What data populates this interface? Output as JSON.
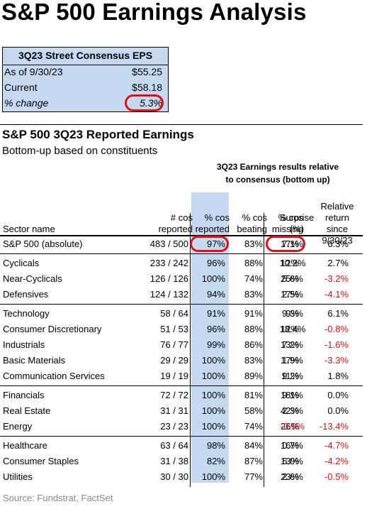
{
  "title": "S&P 500 Earnings Analysis",
  "eps_box": {
    "header": "3Q23 Street Consensus EPS",
    "rows": [
      {
        "label": "As of 9/30/23",
        "value": "$55.25"
      },
      {
        "label": "Current",
        "value": "$58.18"
      },
      {
        "label": "% change",
        "value": "5.3%"
      }
    ],
    "highlight_color": "#e01010",
    "fill_color": "#c5daf0"
  },
  "table_title": "S&P 500 3Q23 Reported Earnings",
  "table_subtitle": "Bottom-up based on constituents",
  "group_header": [
    "3Q23 Earnings results relative",
    "to consensus (bottom up)"
  ],
  "columns": {
    "sector": "Sector name",
    "reported": [
      "# cos",
      "reported"
    ],
    "pct_reported": [
      "% cos",
      "reported"
    ],
    "beating": [
      "% cos",
      "beating"
    ],
    "missing": [
      "% cos",
      "missing"
    ],
    "surprise": [
      "Surprise",
      "(%)"
    ],
    "relative": [
      "Relative",
      "return since",
      "9/30/23"
    ]
  },
  "summary_row": {
    "name": "S&P 500 (absolute)",
    "reported": "483 / 500",
    "pct_reported": "97%",
    "beating": "83%",
    "missing": "17%",
    "surprise": "7.1%",
    "relative": "6.3%"
  },
  "groups": [
    [
      {
        "name": "Cyclicals",
        "reported": "233 / 242",
        "pct_reported": "96%",
        "beating": "88%",
        "missing": "12%",
        "surprise": "10.2%",
        "relative": "2.7%"
      },
      {
        "name": "Near-Cyclicals",
        "reported": "126 / 126",
        "pct_reported": "100%",
        "beating": "74%",
        "missing": "25%",
        "surprise": "5.6%",
        "relative": "-3.2%"
      },
      {
        "name": "Defensives",
        "reported": "124 / 132",
        "pct_reported": "94%",
        "beating": "83%",
        "missing": "17%",
        "surprise": "2.5%",
        "relative": "-4.1%"
      }
    ],
    [
      {
        "name": "Technology",
        "reported": "58 / 64",
        "pct_reported": "91%",
        "beating": "91%",
        "missing": "9%",
        "surprise": "9.3%",
        "relative": "6.1%"
      },
      {
        "name": "Consumer Discretionary",
        "reported": "51 / 53",
        "pct_reported": "96%",
        "beating": "88%",
        "missing": "12%",
        "surprise": "18.4%",
        "relative": "-0.8%"
      },
      {
        "name": "Industrials",
        "reported": "76 / 77",
        "pct_reported": "99%",
        "beating": "86%",
        "missing": "13%",
        "surprise": "7.2%",
        "relative": "-1.6%"
      },
      {
        "name": "Basic Materials",
        "reported": "29 / 29",
        "pct_reported": "100%",
        "beating": "83%",
        "missing": "17%",
        "surprise": "1.9%",
        "relative": "-3.3%"
      },
      {
        "name": "Communication Services",
        "reported": "19 / 19",
        "pct_reported": "100%",
        "beating": "89%",
        "missing": "11%",
        "surprise": "9.2%",
        "relative": "1.8%"
      }
    ],
    [
      {
        "name": "Financials",
        "reported": "72 / 72",
        "pct_reported": "100%",
        "beating": "81%",
        "missing": "18%",
        "surprise": "9.1%",
        "relative": "0.0%"
      },
      {
        "name": "Real Estate",
        "reported": "31 / 31",
        "pct_reported": "100%",
        "beating": "58%",
        "missing": "42%",
        "surprise": "2.3%",
        "relative": "0.0%"
      },
      {
        "name": "Energy",
        "reported": "23 / 23",
        "pct_reported": "100%",
        "beating": "74%",
        "missing": "26%",
        "surprise": "-0.9%",
        "relative": "-13.4%"
      }
    ],
    [
      {
        "name": "Healthcare",
        "reported": "63 / 64",
        "pct_reported": "98%",
        "beating": "84%",
        "missing": "16%",
        "surprise": "0.7%",
        "relative": "-4.7%"
      },
      {
        "name": "Consumer Staples",
        "reported": "31 / 38",
        "pct_reported": "82%",
        "beating": "87%",
        "missing": "13%",
        "surprise": "6.0%",
        "relative": "-4.2%"
      },
      {
        "name": "Utilities",
        "reported": "30 / 30",
        "pct_reported": "100%",
        "beating": "77%",
        "missing": "23%",
        "surprise": "2.6%",
        "relative": "-0.5%"
      }
    ]
  ],
  "negative_color": "#e01010",
  "source": "Source: Fundstrat, FactSet"
}
